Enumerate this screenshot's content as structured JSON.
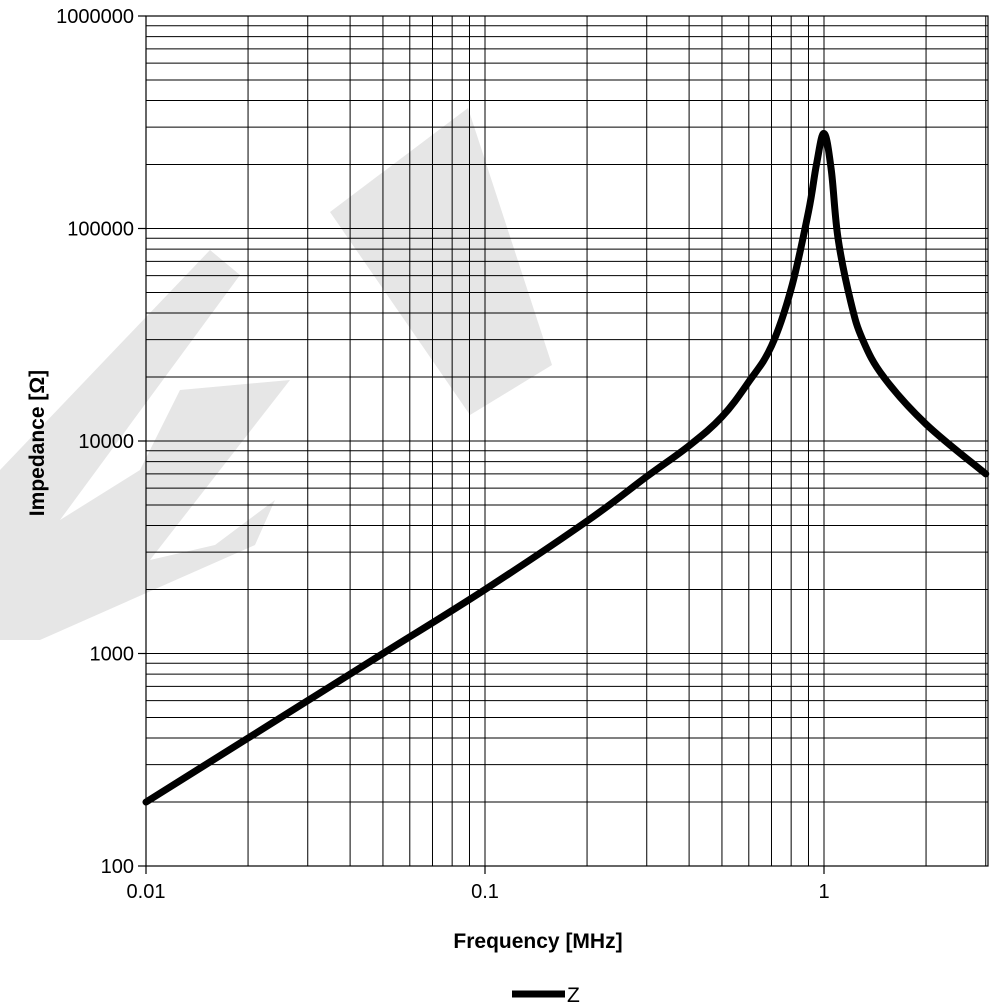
{
  "watermark": "DRAFT",
  "chart_data": {
    "type": "line",
    "title": "",
    "xlabel": "Frequency [MHz]",
    "ylabel": "Impedance [Ω]",
    "xscale": "log",
    "yscale": "log",
    "xlim": [
      0.01,
      3
    ],
    "ylim": [
      100,
      1000000
    ],
    "grid": true,
    "legend_position": "bottom-center",
    "x_tick_labels": [
      "0.01",
      "0.1",
      "1"
    ],
    "y_tick_labels": [
      "100",
      "1000",
      "10000",
      "100000",
      "1000000"
    ],
    "series": [
      {
        "name": "Z",
        "color": "#000000",
        "x": [
          0.01,
          0.02,
          0.03,
          0.05,
          0.1,
          0.2,
          0.3,
          0.4,
          0.5,
          0.6,
          0.7,
          0.8,
          0.9,
          0.95,
          1.0,
          1.05,
          1.1,
          1.2,
          1.3,
          1.5,
          2.0,
          3.0
        ],
        "y": [
          200,
          400,
          600,
          1000,
          2000,
          4200,
          6800,
          9500,
          13000,
          19000,
          28000,
          52000,
          120000,
          200000,
          280000,
          190000,
          90000,
          45000,
          30000,
          20000,
          12000,
          7000
        ]
      }
    ]
  }
}
